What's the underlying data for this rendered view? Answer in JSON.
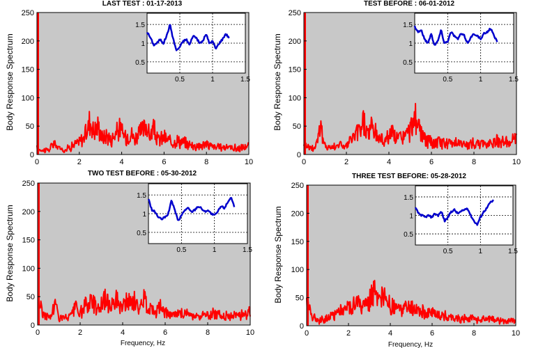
{
  "chart_data": [
    {
      "type": "line",
      "title": "LAST TEST : 01-17-2013",
      "xlabel": "",
      "ylabel": "Body Response Spectrum",
      "xlim": [
        0,
        10
      ],
      "ylim": [
        0,
        250
      ],
      "xticks": [
        0,
        2,
        4,
        6,
        8,
        10
      ],
      "yticks": [
        0,
        50,
        100,
        150,
        200,
        250
      ],
      "background": "#c8c8c8",
      "line_color": "#ff0000",
      "x": [
        0,
        0.3,
        0.6,
        0.8,
        1.0,
        1.3,
        1.6,
        2.0,
        2.2,
        2.4,
        2.5,
        2.7,
        2.9,
        3.1,
        3.3,
        3.5,
        3.7,
        3.9,
        4.2,
        4.4,
        4.6,
        4.8,
        5.0,
        5.2,
        5.3,
        5.5,
        5.7,
        6.0,
        6.3,
        6.6,
        7.0,
        7.5,
        8.0,
        8.5,
        9.0,
        9.5,
        10.0
      ],
      "y": [
        10,
        8,
        9,
        20,
        12,
        8,
        14,
        22,
        30,
        45,
        62,
        40,
        50,
        28,
        35,
        25,
        38,
        45,
        30,
        40,
        28,
        35,
        42,
        55,
        30,
        45,
        25,
        30,
        22,
        25,
        20,
        15,
        18,
        12,
        14,
        10,
        15
      ],
      "spike": {
        "x": 0.0,
        "y": 250
      },
      "inset": {
        "xlim": [
          0,
          1.5
        ],
        "ylim": [
          0.2,
          1.8
        ],
        "xticks": [
          0.5,
          1,
          1.5
        ],
        "yticks": [
          0.5,
          1,
          1.5
        ],
        "line_color": "#0000cc",
        "x": [
          0,
          0.05,
          0.1,
          0.15,
          0.2,
          0.25,
          0.3,
          0.35,
          0.4,
          0.45,
          0.5,
          0.55,
          0.6,
          0.65,
          0.7,
          0.75,
          0.8,
          0.85,
          0.9,
          0.95,
          1.0,
          1.05,
          1.1,
          1.15,
          1.2,
          1.25
        ],
        "y": [
          1.3,
          1.15,
          0.95,
          1.0,
          1.1,
          1.0,
          1.2,
          1.5,
          1.1,
          0.8,
          0.9,
          1.05,
          1.1,
          0.95,
          1.2,
          1.15,
          1.0,
          1.05,
          1.25,
          1.0,
          1.05,
          0.85,
          1.0,
          1.1,
          1.25,
          1.15
        ]
      }
    },
    {
      "type": "line",
      "title": "TEST BEFORE : 06-01-2012",
      "xlabel": "",
      "ylabel": "Body Response Spectrum",
      "xlim": [
        0,
        10
      ],
      "ylim": [
        0,
        250
      ],
      "xticks": [
        0,
        2,
        4,
        6,
        8,
        10
      ],
      "yticks": [
        0,
        50,
        100,
        150,
        200,
        250
      ],
      "background": "#c8c8c8",
      "line_color": "#ff0000",
      "x": [
        0,
        0.3,
        0.5,
        0.8,
        0.9,
        1.0,
        1.3,
        1.6,
        2.0,
        2.3,
        2.6,
        2.8,
        3.0,
        3.2,
        3.5,
        3.8,
        4.1,
        4.4,
        4.7,
        5.0,
        5.2,
        5.4,
        5.6,
        5.8,
        6.0,
        6.4,
        6.8,
        7.2,
        7.6,
        8.0,
        8.4,
        8.8,
        9.2,
        9.6,
        10.0
      ],
      "y": [
        20,
        12,
        10,
        55,
        22,
        15,
        12,
        18,
        15,
        30,
        40,
        60,
        35,
        50,
        30,
        25,
        38,
        28,
        32,
        40,
        70,
        45,
        30,
        25,
        20,
        22,
        18,
        25,
        15,
        20,
        18,
        22,
        25,
        20,
        28
      ],
      "spike": {
        "x": 0.0,
        "y": 250
      },
      "inset": {
        "xlim": [
          0,
          1.5
        ],
        "ylim": [
          0.2,
          1.8
        ],
        "xticks": [
          0.5,
          1,
          1.5
        ],
        "yticks": [
          0.5,
          1,
          1.5
        ],
        "line_color": "#0000cc",
        "x": [
          0,
          0.05,
          0.1,
          0.15,
          0.2,
          0.25,
          0.3,
          0.35,
          0.4,
          0.45,
          0.5,
          0.55,
          0.6,
          0.65,
          0.7,
          0.75,
          0.8,
          0.85,
          0.9,
          0.95,
          1.0,
          1.05,
          1.1,
          1.15,
          1.2,
          1.25
        ],
        "y": [
          1.45,
          1.3,
          1.35,
          1.1,
          1.0,
          1.25,
          0.95,
          1.05,
          1.35,
          1.0,
          1.05,
          1.3,
          1.2,
          1.1,
          1.25,
          1.2,
          1.0,
          1.15,
          1.25,
          1.2,
          1.1,
          1.25,
          1.3,
          1.4,
          1.2,
          1.05
        ]
      }
    },
    {
      "type": "line",
      "title": "TWO TEST BEFORE : 05-30-2012",
      "xlabel": "Frequency, Hz",
      "ylabel": "Body Response Spectrum",
      "xlim": [
        0,
        10
      ],
      "ylim": [
        0,
        250
      ],
      "xticks": [
        0,
        2,
        4,
        6,
        8,
        10
      ],
      "yticks": [
        0,
        50,
        100,
        150,
        200,
        250
      ],
      "background": "#c8c8c8",
      "line_color": "#ff0000",
      "x": [
        0,
        0.3,
        0.6,
        0.8,
        1.0,
        1.3,
        1.6,
        1.8,
        2.0,
        2.3,
        2.6,
        2.9,
        3.1,
        3.4,
        3.6,
        3.9,
        4.2,
        4.5,
        4.8,
        5.0,
        5.2,
        5.5,
        5.8,
        6.2,
        6.6,
        7.0,
        7.5,
        8.0,
        8.5,
        9.0,
        9.5,
        10.0
      ],
      "y": [
        45,
        18,
        12,
        40,
        15,
        12,
        18,
        32,
        20,
        35,
        42,
        28,
        45,
        35,
        52,
        30,
        38,
        42,
        28,
        45,
        35,
        25,
        30,
        20,
        18,
        22,
        15,
        18,
        20,
        15,
        18,
        22
      ],
      "spike": {
        "x": 0.0,
        "y": 250
      },
      "inset": {
        "xlim": [
          0,
          1.5
        ],
        "ylim": [
          0.2,
          1.8
        ],
        "xticks": [
          0.5,
          1,
          1.5
        ],
        "yticks": [
          0.5,
          1,
          1.5
        ],
        "line_color": "#0000cc",
        "x": [
          0,
          0.05,
          0.1,
          0.15,
          0.2,
          0.25,
          0.3,
          0.35,
          0.4,
          0.45,
          0.5,
          0.55,
          0.6,
          0.65,
          0.7,
          0.75,
          0.8,
          0.85,
          0.9,
          0.95,
          1.0,
          1.05,
          1.1,
          1.15,
          1.2,
          1.25,
          1.3
        ],
        "y": [
          1.4,
          1.1,
          1.05,
          0.9,
          0.85,
          0.9,
          1.0,
          1.35,
          1.1,
          0.8,
          0.95,
          1.1,
          1.15,
          1.05,
          1.1,
          1.2,
          1.15,
          1.05,
          1.1,
          1.0,
          0.95,
          1.05,
          1.2,
          1.15,
          1.3,
          1.45,
          1.2
        ]
      }
    },
    {
      "type": "line",
      "title": "THREE TEST BEFORE:    05-28-2012",
      "xlabel": "Frequency, Hz",
      "ylabel": "Body Response Spectrum",
      "xlim": [
        0,
        10
      ],
      "ylim": [
        0,
        250
      ],
      "xticks": [
        0,
        2,
        4,
        6,
        8,
        10
      ],
      "yticks": [
        0,
        50,
        100,
        150,
        200,
        250
      ],
      "background": "#c8c8c8",
      "line_color": "#ff0000",
      "x": [
        0,
        0.3,
        0.6,
        0.9,
        1.2,
        1.5,
        1.8,
        2.1,
        2.4,
        2.7,
        3.0,
        3.2,
        3.4,
        3.7,
        4.0,
        4.3,
        4.6,
        5.0,
        5.4,
        5.8,
        6.2,
        6.6,
        7.0,
        7.4,
        7.8,
        8.2,
        8.6,
        9.0,
        9.5,
        10.0
      ],
      "y": [
        45,
        15,
        10,
        12,
        18,
        25,
        30,
        35,
        40,
        32,
        45,
        65,
        40,
        50,
        35,
        30,
        28,
        32,
        25,
        22,
        20,
        18,
        15,
        12,
        15,
        10,
        12,
        10,
        8,
        10
      ],
      "spike": {
        "x": 0.0,
        "y": 250
      },
      "inset": {
        "xlim": [
          0,
          1.5
        ],
        "ylim": [
          0.2,
          1.8
        ],
        "xticks": [
          0.5,
          1,
          1.5
        ],
        "yticks": [
          0.5,
          1,
          1.5
        ],
        "line_color": "#0000cc",
        "x": [
          0,
          0.05,
          0.1,
          0.15,
          0.2,
          0.25,
          0.3,
          0.35,
          0.4,
          0.45,
          0.5,
          0.55,
          0.6,
          0.65,
          0.7,
          0.75,
          0.8,
          0.85,
          0.9,
          0.95,
          1.0,
          1.05,
          1.1,
          1.15,
          1.2
        ],
        "y": [
          1.2,
          1.05,
          1.0,
          0.95,
          1.0,
          0.95,
          1.05,
          1.0,
          1.1,
          0.85,
          0.95,
          1.1,
          1.15,
          1.05,
          1.1,
          1.15,
          1.2,
          1.0,
          0.85,
          0.75,
          0.95,
          1.1,
          1.2,
          1.35,
          1.4
        ]
      }
    }
  ]
}
